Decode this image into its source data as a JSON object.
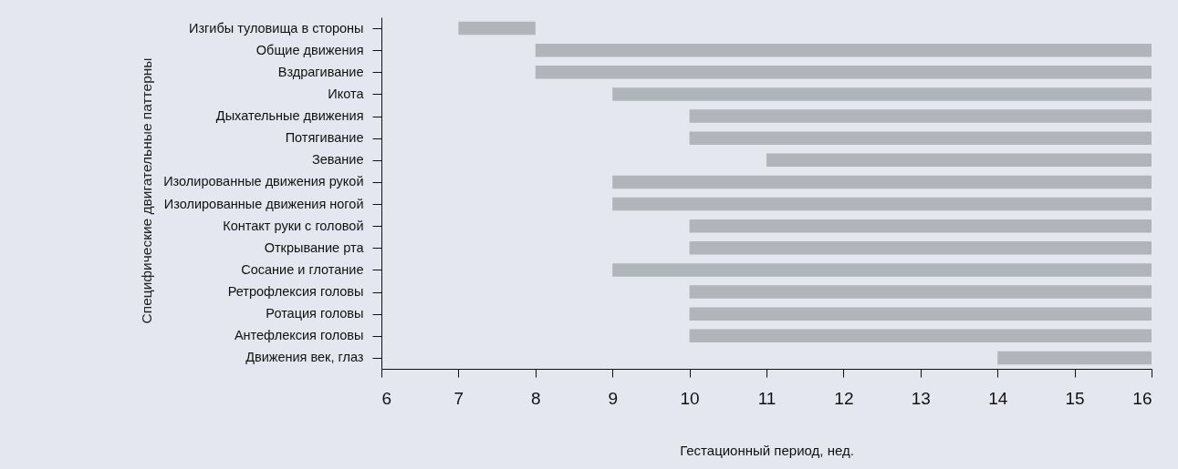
{
  "chart_data": {
    "type": "bar",
    "orientation": "horizontal",
    "xlabel": "Гестационный период, нед.",
    "ylabel": "Специфические двигательные паттерны",
    "categories": [
      "Изгибы туловища в стороны",
      "Общие движения",
      "Вздрагивание",
      "Икота",
      "Дыхательные движения",
      "Потягивание",
      "Зевание",
      "Изолированные движения рукой",
      "Изолированные движения ногой",
      "Контакт руки с головой",
      "Открывание рта",
      "Сосание и глотание",
      "Ретрофлексия головы",
      "Ротация головы",
      "Антефлексия головы",
      "Движения век, глаз"
    ],
    "base": [
      7,
      8,
      8,
      9,
      10,
      10,
      11,
      9,
      9,
      10,
      10,
      9,
      10,
      10,
      10,
      14
    ],
    "values": [
      1,
      8,
      8,
      7,
      6,
      6,
      5,
      7,
      7,
      6,
      6,
      7,
      6,
      6,
      6,
      2
    ],
    "color": "#b1b4bb",
    "xlim": [
      6,
      16
    ],
    "xticks": [
      6,
      7,
      8,
      9,
      10,
      11,
      12,
      13,
      14,
      15,
      16
    ]
  }
}
